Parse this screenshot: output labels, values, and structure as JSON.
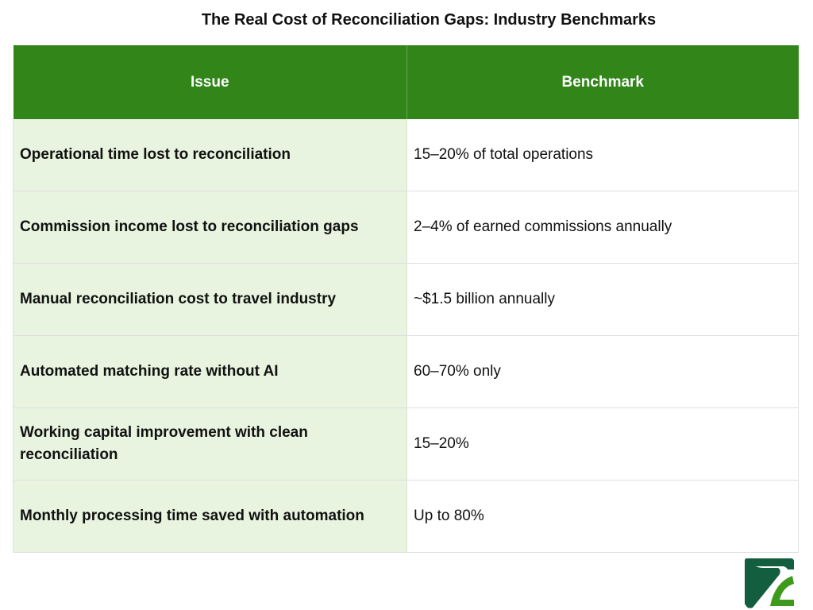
{
  "title": "The Real Cost of Reconciliation Gaps: Industry Benchmarks",
  "table": {
    "headers": [
      "Issue",
      "Benchmark"
    ],
    "rows": [
      {
        "issue": "Operational time lost to reconciliation",
        "benchmark": "15–20% of total operations"
      },
      {
        "issue": "Commission income lost to reconciliation gaps",
        "benchmark": "2–4% of earned commissions annually"
      },
      {
        "issue": "Manual reconciliation cost to travel industry",
        "benchmark": "~$1.5 billion annually"
      },
      {
        "issue": "Automated matching rate without AI",
        "benchmark": "60–70% only"
      },
      {
        "issue": "Working capital improvement with clean reconciliation",
        "benchmark": "15–20%"
      },
      {
        "issue": "Monthly processing time saved with automation",
        "benchmark": "Up to 80%"
      }
    ]
  },
  "colors": {
    "header": "#318519",
    "issue_column": "#e8f4df",
    "logo_dark": "#135e3f",
    "logo_light": "#3e9a1c"
  },
  "logo": {
    "icon": "brand-logo-icon"
  }
}
